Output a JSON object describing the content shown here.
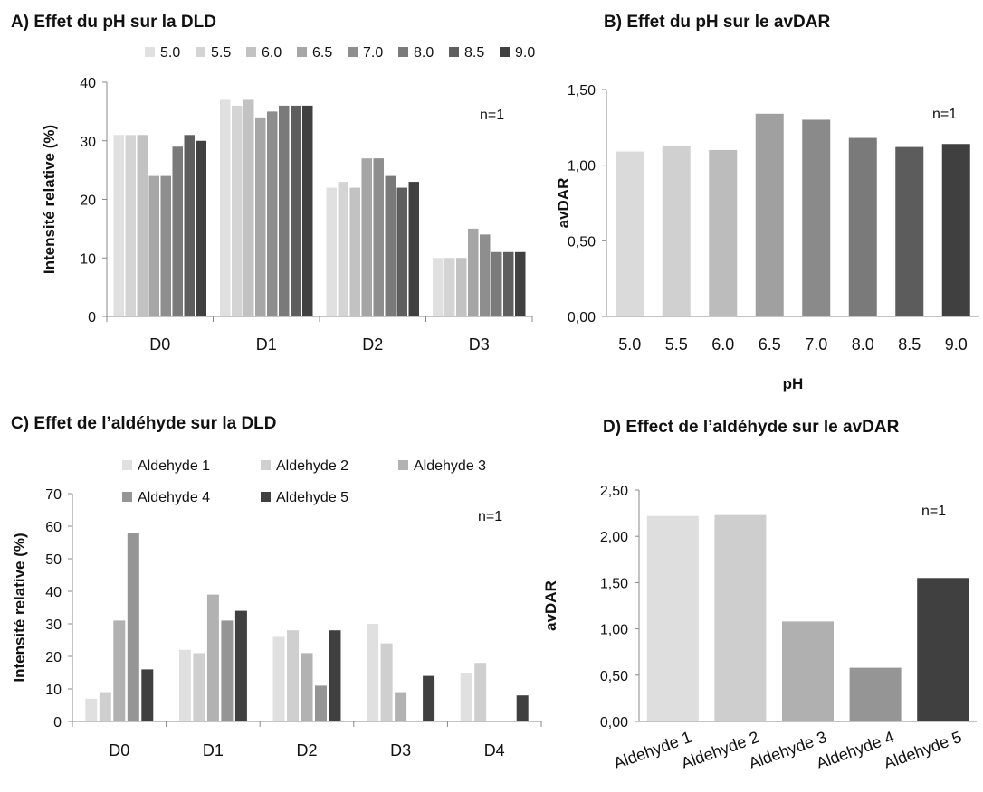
{
  "panels": {
    "a_title": "A) Effet du pH sur la DLD",
    "b_title": "B) Effet du pH sur le avDAR",
    "c_title": "C) Effet de l’aldéhyde sur la DLD",
    "d_title": "D) Effect de l’aldéhyde sur le avDAR"
  },
  "chart_data": [
    {
      "id": "A",
      "type": "bar",
      "title": "A) Effet du pH sur la DLD",
      "ylabel": "Intensité relative (%)",
      "xlabel": "",
      "ylim": [
        0,
        40
      ],
      "yticks": [
        "0",
        "10",
        "20",
        "30",
        "40"
      ],
      "categories": [
        "D0",
        "D1",
        "D2",
        "D3"
      ],
      "legend_position": "top",
      "annotation": "n=1",
      "series": [
        {
          "name": "5.0",
          "color": "#e0e0e0",
          "values": [
            31,
            37,
            22,
            10
          ]
        },
        {
          "name": "5.5",
          "color": "#d4d4d4",
          "values": [
            31,
            36,
            23,
            10
          ]
        },
        {
          "name": "6.0",
          "color": "#c2c2c2",
          "values": [
            31,
            37,
            22,
            10
          ]
        },
        {
          "name": "6.5",
          "color": "#a6a6a6",
          "values": [
            24,
            34,
            27,
            15
          ]
        },
        {
          "name": "7.0",
          "color": "#8e8e8e",
          "values": [
            24,
            35,
            27,
            14
          ]
        },
        {
          "name": "8.0",
          "color": "#7a7a7a",
          "values": [
            29,
            36,
            24,
            11
          ]
        },
        {
          "name": "8.5",
          "color": "#5e5e5e",
          "values": [
            31,
            36,
            22,
            11
          ]
        },
        {
          "name": "9.0",
          "color": "#404040",
          "values": [
            30,
            36,
            23,
            11
          ]
        }
      ]
    },
    {
      "id": "B",
      "type": "bar",
      "title": "B) Effet du pH sur le avDAR",
      "ylabel": "avDAR",
      "xlabel": "pH",
      "ylim": [
        0,
        1.5
      ],
      "yticks": [
        "0,00",
        "0,50",
        "1,00",
        "1,50"
      ],
      "categories": [
        "5.0",
        "5.5",
        "6.0",
        "6.5",
        "7.0",
        "8.0",
        "8.5",
        "9.0"
      ],
      "annotation": "n=1",
      "values": [
        1.09,
        1.13,
        1.1,
        1.34,
        1.3,
        1.18,
        1.12,
        1.14
      ],
      "colors": [
        "#dadada",
        "#d0d0d0",
        "#bcbcbc",
        "#a0a0a0",
        "#8a8a8a",
        "#7a7a7a",
        "#5c5c5c",
        "#404040"
      ]
    },
    {
      "id": "C",
      "type": "bar",
      "title": "C) Effet de l’aldéhyde sur la DLD",
      "ylabel": "Intensité relative (%)",
      "xlabel": "",
      "ylim": [
        0,
        70
      ],
      "yticks": [
        "0",
        "10",
        "20",
        "30",
        "40",
        "50",
        "60",
        "70"
      ],
      "categories": [
        "D0",
        "D1",
        "D2",
        "D3",
        "D4"
      ],
      "legend_position": "top",
      "annotation": "n=1",
      "series": [
        {
          "name": "Aldehyde 1",
          "color": "#e0e0e0",
          "values": [
            7,
            22,
            26,
            30,
            15
          ]
        },
        {
          "name": "Aldehyde 2",
          "color": "#cfcfcf",
          "values": [
            9,
            21,
            28,
            24,
            18
          ]
        },
        {
          "name": "Aldehyde 3",
          "color": "#b2b2b2",
          "values": [
            31,
            39,
            21,
            9,
            0
          ]
        },
        {
          "name": "Aldehyde 4",
          "color": "#959595",
          "values": [
            58,
            31,
            11,
            0,
            0
          ]
        },
        {
          "name": "Aldehyde 5",
          "color": "#404040",
          "values": [
            16,
            34,
            28,
            14,
            8
          ]
        }
      ]
    },
    {
      "id": "D",
      "type": "bar",
      "title": "D) Effect de l’aldéhyde sur le avDAR",
      "ylabel": "avDAR",
      "xlabel": "",
      "ylim": [
        0,
        2.5
      ],
      "yticks": [
        "0,00",
        "0,50",
        "1,00",
        "1,50",
        "2,00",
        "2,50"
      ],
      "categories": [
        "Aldehyde 1",
        "Aldehyde 2",
        "Aldehyde 3",
        "Aldehyde 4",
        "Aldehyde 5"
      ],
      "annotation": "n=1",
      "values": [
        2.22,
        2.23,
        1.08,
        0.58,
        1.55
      ],
      "colors": [
        "#dedede",
        "#cecece",
        "#b0b0b0",
        "#959595",
        "#404040"
      ]
    }
  ]
}
